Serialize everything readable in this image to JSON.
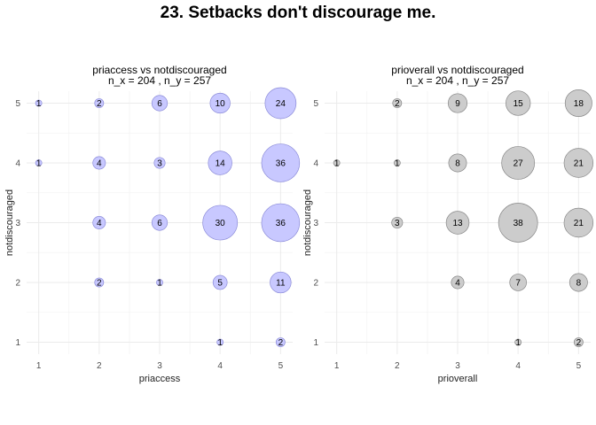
{
  "title": "23. Setbacks don't discourage me.",
  "colors": {
    "panel1_fill": "#c8c8ff",
    "panel1_stroke": "#8c8cd9",
    "panel2_fill": "#cccccc",
    "panel2_stroke": "#888888"
  },
  "chart_data": [
    {
      "type": "scatter",
      "title": "priaccess vs notdiscouraged",
      "subtitle": "n_x = 204 , n_y = 257",
      "xlabel": "priaccess",
      "ylabel": "notdiscouraged",
      "x_ticks": [
        "1",
        "2",
        "3",
        "4",
        "5"
      ],
      "y_ticks": [
        "1",
        "2",
        "3",
        "4",
        "5"
      ],
      "xlim": [
        0.8,
        5.2
      ],
      "ylim": [
        0.8,
        5.2
      ],
      "points": [
        {
          "x": 1,
          "y": 5,
          "n": 1
        },
        {
          "x": 2,
          "y": 5,
          "n": 2
        },
        {
          "x": 3,
          "y": 5,
          "n": 6
        },
        {
          "x": 4,
          "y": 5,
          "n": 10
        },
        {
          "x": 5,
          "y": 5,
          "n": 24
        },
        {
          "x": 1,
          "y": 4,
          "n": 1
        },
        {
          "x": 2,
          "y": 4,
          "n": 4
        },
        {
          "x": 3,
          "y": 4,
          "n": 3
        },
        {
          "x": 4,
          "y": 4,
          "n": 14
        },
        {
          "x": 5,
          "y": 4,
          "n": 36
        },
        {
          "x": 2,
          "y": 3,
          "n": 4
        },
        {
          "x": 3,
          "y": 3,
          "n": 6
        },
        {
          "x": 4,
          "y": 3,
          "n": 30
        },
        {
          "x": 5,
          "y": 3,
          "n": 36
        },
        {
          "x": 2,
          "y": 2,
          "n": 2
        },
        {
          "x": 3,
          "y": 2,
          "n": 1
        },
        {
          "x": 4,
          "y": 2,
          "n": 5
        },
        {
          "x": 5,
          "y": 2,
          "n": 11
        },
        {
          "x": 4,
          "y": 1,
          "n": 1
        },
        {
          "x": 5,
          "y": 1,
          "n": 2
        }
      ]
    },
    {
      "type": "scatter",
      "title": "prioverall vs notdiscouraged",
      "subtitle": "n_x = 204 , n_y = 257",
      "xlabel": "prioverall",
      "ylabel": "notdiscouraged",
      "x_ticks": [
        "1",
        "2",
        "3",
        "4",
        "5"
      ],
      "y_ticks": [
        "1",
        "2",
        "3",
        "4",
        "5"
      ],
      "xlim": [
        0.8,
        5.2
      ],
      "ylim": [
        0.8,
        5.2
      ],
      "points": [
        {
          "x": 2,
          "y": 5,
          "n": 2
        },
        {
          "x": 3,
          "y": 5,
          "n": 9
        },
        {
          "x": 4,
          "y": 5,
          "n": 15
        },
        {
          "x": 5,
          "y": 5,
          "n": 18
        },
        {
          "x": 1,
          "y": 4,
          "n": 1
        },
        {
          "x": 2,
          "y": 4,
          "n": 1
        },
        {
          "x": 3,
          "y": 4,
          "n": 8
        },
        {
          "x": 4,
          "y": 4,
          "n": 27
        },
        {
          "x": 5,
          "y": 4,
          "n": 21
        },
        {
          "x": 2,
          "y": 3,
          "n": 3
        },
        {
          "x": 3,
          "y": 3,
          "n": 13
        },
        {
          "x": 4,
          "y": 3,
          "n": 38
        },
        {
          "x": 5,
          "y": 3,
          "n": 21
        },
        {
          "x": 3,
          "y": 2,
          "n": 4
        },
        {
          "x": 4,
          "y": 2,
          "n": 7
        },
        {
          "x": 5,
          "y": 2,
          "n": 8
        },
        {
          "x": 4,
          "y": 1,
          "n": 1
        },
        {
          "x": 5,
          "y": 1,
          "n": 2
        }
      ]
    }
  ]
}
